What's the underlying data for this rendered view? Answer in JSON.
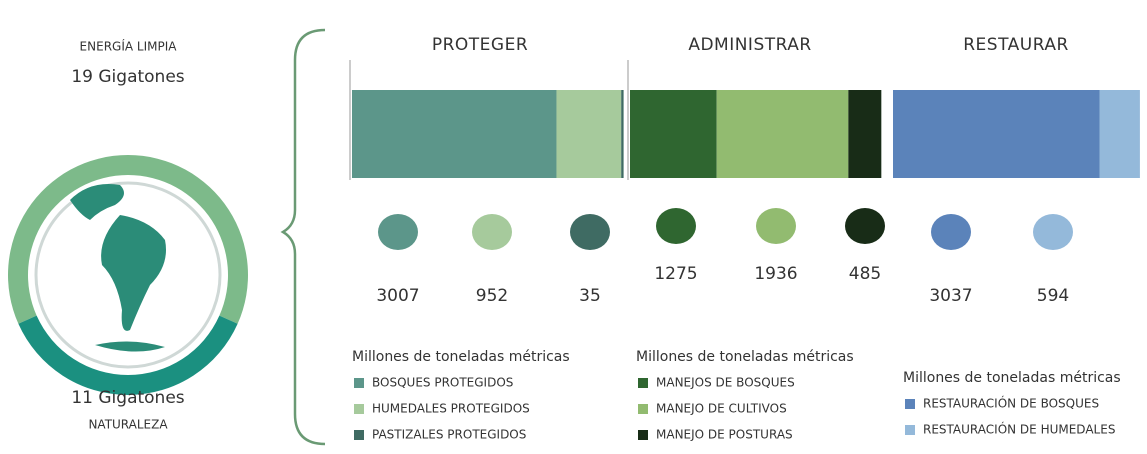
{
  "chart_data": [
    {
      "type": "pie",
      "categories": [
        "ENERGÍA LIMPIA",
        "NATURALEZA"
      ],
      "values": [
        19,
        11
      ],
      "value_labels": [
        "19 Gigatones",
        "11 Gigatones"
      ],
      "colors": [
        "#7dba8a",
        "#1b9080"
      ]
    },
    {
      "type": "bar",
      "orientation": "horizontal",
      "stacked": true,
      "title": "PROTEGER",
      "subtitle": "Millones de toneladas métricas",
      "series": [
        {
          "name": "BOSQUES PROTEGIDOS",
          "color": "#5c968a",
          "values": [
            3007
          ]
        },
        {
          "name": "HUMEDALES PROTEGIDOS",
          "color": "#a6ca9c",
          "values": [
            952
          ]
        },
        {
          "name": "PASTIZALES PROTEGIDOS",
          "color": "#3f6b63",
          "values": [
            35
          ]
        }
      ]
    },
    {
      "type": "bar",
      "orientation": "horizontal",
      "stacked": true,
      "title": "ADMINISTRAR",
      "subtitle": "Millones de toneladas métricas",
      "series": [
        {
          "name": "MANEJOS DE BOSQUES",
          "color": "#2f6630",
          "values": [
            1275
          ]
        },
        {
          "name": "MANEJO DE CULTIVOS",
          "color": "#92bb70",
          "values": [
            1936
          ]
        },
        {
          "name": "MANEJO DE POSTURAS",
          "color": "#182c17",
          "values": [
            485
          ]
        }
      ]
    },
    {
      "type": "bar",
      "orientation": "horizontal",
      "stacked": true,
      "title": "RESTAURAR",
      "subtitle": "Millones de toneladas métricas",
      "series": [
        {
          "name": "RESTAURACIÓN DE BOSQUES",
          "color": "#5b83ba",
          "values": [
            3037
          ]
        },
        {
          "name": "RESTAURACIÓN DE HUMEDALES",
          "color": "#94b9da",
          "values": [
            594
          ]
        }
      ]
    }
  ]
}
